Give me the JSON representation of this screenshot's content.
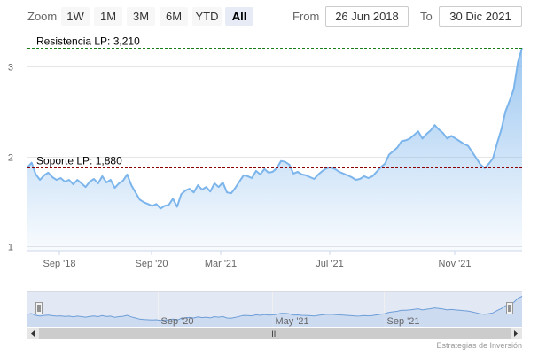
{
  "toolbar": {
    "zoom_label": "Zoom",
    "buttons": [
      {
        "label": "1W",
        "active": false
      },
      {
        "label": "1M",
        "active": false
      },
      {
        "label": "3M",
        "active": false
      },
      {
        "label": "6M",
        "active": false
      },
      {
        "label": "YTD",
        "active": false
      },
      {
        "label": "All",
        "active": true
      }
    ],
    "from_label": "From",
    "from_value": "26 Jun 2018",
    "to_label": "To",
    "to_value": "30 Dic 2021"
  },
  "credits": "Estrategias de Inversión",
  "colors": {
    "series_line": "#7cb5ec",
    "resistance_line": "#1a7f1a",
    "support_line": "#8b0000",
    "navigator_mask": "#dfe6f3",
    "selected_button": "#e6ebf5"
  },
  "chart_data": {
    "type": "area",
    "xlabel": "",
    "ylabel": "",
    "x_tick_labels": [
      "Sep '18",
      "Sep '20",
      "Mar '21",
      "Jul '21",
      "Nov '21"
    ],
    "y_ticks": [
      1,
      2,
      3
    ],
    "ylim": [
      0.95,
      3.3
    ],
    "navigator": {
      "tick_labels": [
        "Sep '20",
        "May '21",
        "Sep '21"
      ],
      "scrollbar_grip": "III"
    },
    "plot_lines": [
      {
        "label": "Resistencia LP: 3,210",
        "value": 3.21,
        "style": "dashed",
        "color": "#1a7f1a"
      },
      {
        "label": "Soporte LP: 1,880",
        "value": 1.88,
        "style": "dashed",
        "color": "#8b0000"
      }
    ],
    "series": [
      {
        "values": [
          1.88,
          1.93,
          1.8,
          1.74,
          1.79,
          1.82,
          1.77,
          1.74,
          1.76,
          1.72,
          1.74,
          1.69,
          1.74,
          1.7,
          1.66,
          1.72,
          1.75,
          1.7,
          1.78,
          1.71,
          1.74,
          1.65,
          1.7,
          1.73,
          1.8,
          1.68,
          1.6,
          1.52,
          1.49,
          1.47,
          1.45,
          1.47,
          1.42,
          1.45,
          1.46,
          1.53,
          1.44,
          1.58,
          1.62,
          1.64,
          1.6,
          1.68,
          1.63,
          1.66,
          1.61,
          1.7,
          1.66,
          1.71,
          1.6,
          1.59,
          1.65,
          1.72,
          1.79,
          1.78,
          1.76,
          1.84,
          1.8,
          1.86,
          1.82,
          1.83,
          1.87,
          1.95,
          1.94,
          1.91,
          1.81,
          1.83,
          1.8,
          1.79,
          1.77,
          1.75,
          1.8,
          1.84,
          1.87,
          1.88,
          1.86,
          1.83,
          1.81,
          1.79,
          1.77,
          1.74,
          1.75,
          1.78,
          1.76,
          1.78,
          1.83,
          1.88,
          1.92,
          2.02,
          2.06,
          2.1,
          2.17,
          2.18,
          2.2,
          2.24,
          2.28,
          2.2,
          2.25,
          2.29,
          2.35,
          2.3,
          2.26,
          2.2,
          2.23,
          2.2,
          2.17,
          2.14,
          2.12,
          2.05,
          1.98,
          1.91,
          1.87,
          1.92,
          1.98,
          2.15,
          2.3,
          2.5,
          2.62,
          2.75,
          3.05,
          3.21
        ]
      }
    ]
  }
}
